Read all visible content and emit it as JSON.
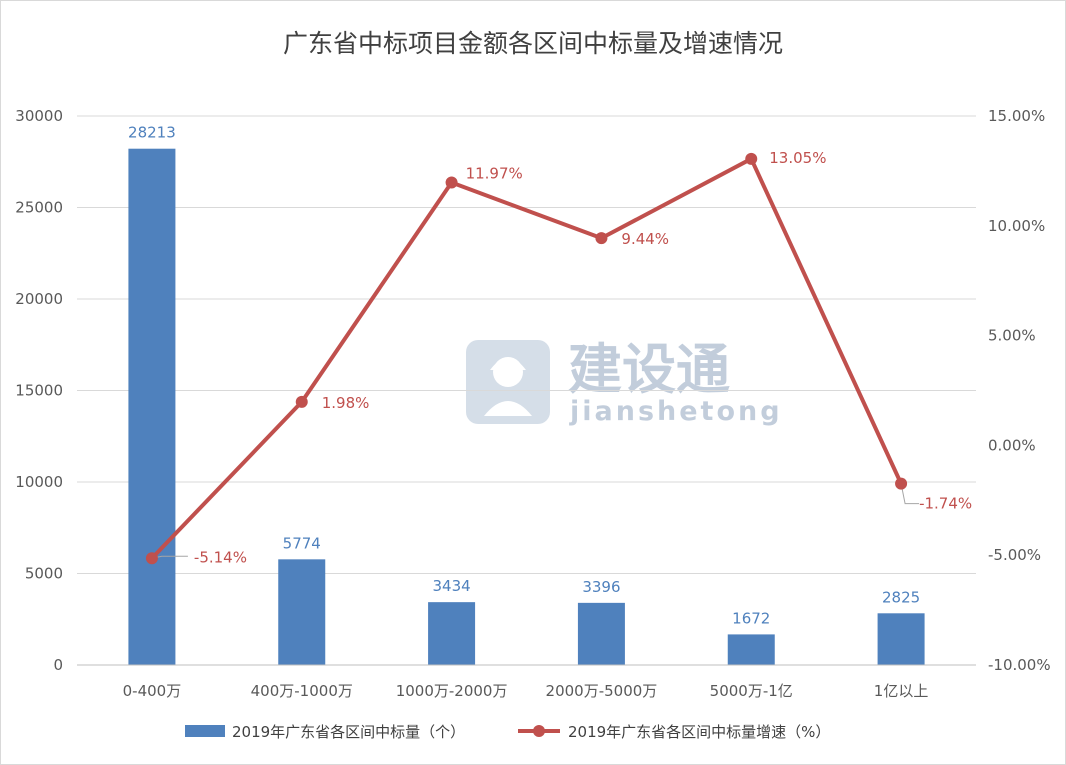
{
  "watermark": {
    "name": "建设通",
    "latin": "jianshetong",
    "icon": "helmet-worker-icon"
  },
  "colors": {
    "bar": "#4f81bd",
    "line": "#c0504d",
    "grid": "#d9d9d9",
    "text": "#595959"
  },
  "chart_data": {
    "type": "bar+line",
    "title": "广东省中标项目金额各区间中标量及增速情况",
    "categories": [
      "0-400万",
      "400万-1000万",
      "1000万-2000万",
      "2000万-5000万",
      "5000万-1亿",
      "1亿以上"
    ],
    "series": [
      {
        "name": "2019年广东省各区间中标量（个）",
        "type": "bar",
        "axis": "left",
        "values": [
          28213,
          5774,
          3434,
          3396,
          1672,
          2825
        ],
        "labels": [
          "28213",
          "5774",
          "3434",
          "3396",
          "1672",
          "2825"
        ]
      },
      {
        "name": "2019年广东省各区间中标量增速（%）",
        "type": "line",
        "axis": "right",
        "values": [
          -5.14,
          1.98,
          11.97,
          9.44,
          13.05,
          -1.74
        ],
        "labels": [
          "-5.14%",
          "1.98%",
          "11.97%",
          "9.44%",
          "13.05%",
          "-1.74%"
        ]
      }
    ],
    "y_left": {
      "min": 0,
      "max": 30000,
      "ticks": [
        "0",
        "5000",
        "10000",
        "15000",
        "20000",
        "25000",
        "30000"
      ]
    },
    "y_right": {
      "min": -10,
      "max": 15,
      "ticks": [
        "-10.00%",
        "-5.00%",
        "0.00%",
        "5.00%",
        "10.00%",
        "15.00%"
      ]
    },
    "grid": true,
    "legend": "bottom"
  }
}
